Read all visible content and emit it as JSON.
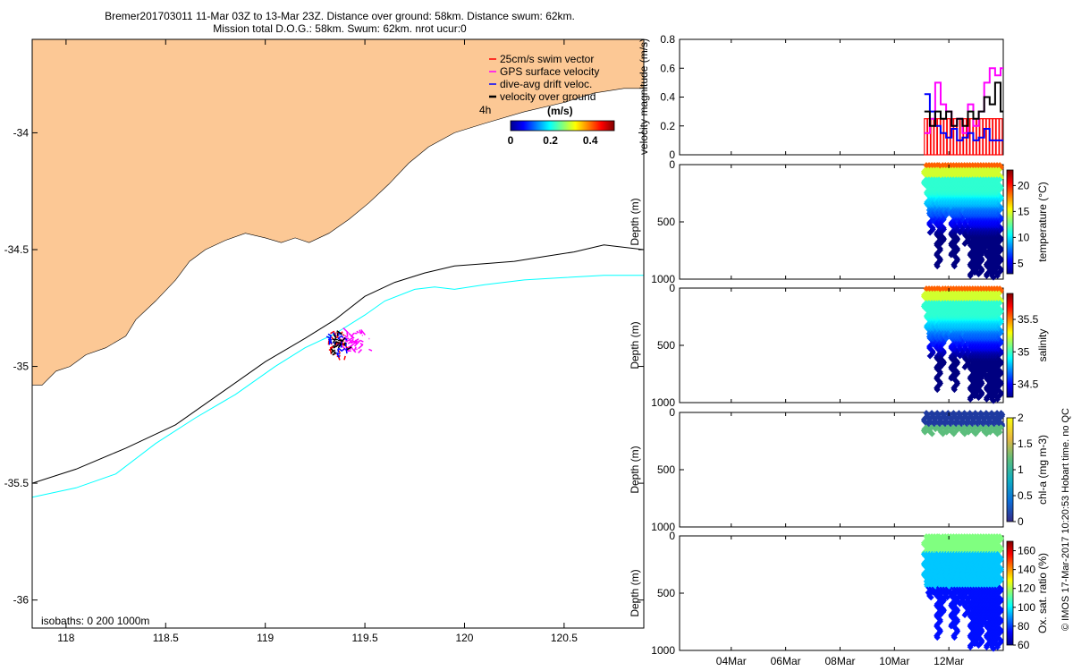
{
  "header": {
    "line1": "Bremer201703011 11-Mar 03Z to 13-Mar 23Z. Distance over ground: 58km. Distance swum: 62km.",
    "line2": "Mission total D.O.G.: 58km. Swum: 62km. nrot ucur:0"
  },
  "credit": "© IMOS 17-Mar-2017 10:20:53 Hobart time. no QC",
  "colors": {
    "land": "#fcc895",
    "isobath200": "#000000",
    "isobath1000": "#00ffff",
    "swim": "#ff0000",
    "gps": "#ff00ff",
    "dive": "#0000ff",
    "ground": "#000000"
  },
  "chart_data": [
    {
      "type": "map",
      "x_ticks": [
        "118",
        "118.5",
        "119",
        "119.5",
        "120",
        "120.5"
      ],
      "y_ticks": [
        "-34",
        "-34.5",
        "-35",
        "-35.5",
        "-36"
      ],
      "xlim": [
        117.83,
        120.9
      ],
      "ylim": [
        -36.12,
        -33.6
      ],
      "legend": {
        "placement": "top-right",
        "items": [
          {
            "label": "25cm/s swim vector",
            "color": "#ff0000"
          },
          {
            "label": "GPS surface velocity",
            "color": "#ff00ff"
          },
          {
            "label": "dive-avg drift veloc.",
            "color": "#0000ff"
          },
          {
            "label": "velocity over ground",
            "color": "#000000"
          }
        ]
      },
      "colorbar": {
        "unit_label": "(m/s)",
        "ticks": [
          "0",
          "0.2",
          "0.4"
        ],
        "range": [
          0,
          0.52
        ],
        "lag_label": "4h"
      },
      "isobath_label": "isobaths: 0   200  1000m",
      "coastline": [
        [
          117.83,
          -35.08
        ],
        [
          117.88,
          -35.08
        ],
        [
          117.95,
          -35.02
        ],
        [
          118.02,
          -35.0
        ],
        [
          118.1,
          -34.95
        ],
        [
          118.2,
          -34.92
        ],
        [
          118.3,
          -34.87
        ],
        [
          118.35,
          -34.8
        ],
        [
          118.45,
          -34.72
        ],
        [
          118.55,
          -34.63
        ],
        [
          118.62,
          -34.55
        ],
        [
          118.7,
          -34.5
        ],
        [
          118.8,
          -34.46
        ],
        [
          118.9,
          -34.43
        ],
        [
          119.0,
          -34.45
        ],
        [
          119.08,
          -34.47
        ],
        [
          119.15,
          -34.45
        ],
        [
          119.22,
          -34.47
        ],
        [
          119.32,
          -34.43
        ],
        [
          119.42,
          -34.37
        ],
        [
          119.52,
          -34.3
        ],
        [
          119.62,
          -34.22
        ],
        [
          119.72,
          -34.13
        ],
        [
          119.82,
          -34.06
        ],
        [
          119.95,
          -34.0
        ],
        [
          120.1,
          -33.96
        ],
        [
          120.3,
          -33.91
        ],
        [
          120.5,
          -33.87
        ],
        [
          120.65,
          -33.83
        ],
        [
          120.8,
          -33.81
        ],
        [
          120.9,
          -33.81
        ]
      ],
      "isobath_200m": [
        [
          117.83,
          -35.5
        ],
        [
          118.05,
          -35.44
        ],
        [
          118.3,
          -35.35
        ],
        [
          118.55,
          -35.25
        ],
        [
          118.8,
          -35.1
        ],
        [
          119.0,
          -34.98
        ],
        [
          119.2,
          -34.88
        ],
        [
          119.35,
          -34.8
        ],
        [
          119.5,
          -34.7
        ],
        [
          119.65,
          -34.64
        ],
        [
          119.8,
          -34.6
        ],
        [
          119.95,
          -34.57
        ],
        [
          120.1,
          -34.56
        ],
        [
          120.25,
          -34.55
        ],
        [
          120.4,
          -34.53
        ],
        [
          120.55,
          -34.51
        ],
        [
          120.7,
          -34.48
        ],
        [
          120.9,
          -34.5
        ]
      ],
      "isobath_1000m": [
        [
          117.83,
          -35.56
        ],
        [
          118.05,
          -35.52
        ],
        [
          118.25,
          -35.46
        ],
        [
          118.45,
          -35.33
        ],
        [
          118.65,
          -35.22
        ],
        [
          118.85,
          -35.12
        ],
        [
          119.05,
          -35.0
        ],
        [
          119.2,
          -34.92
        ],
        [
          119.35,
          -34.86
        ],
        [
          119.5,
          -34.78
        ],
        [
          119.6,
          -34.72
        ],
        [
          119.75,
          -34.67
        ],
        [
          119.85,
          -34.66
        ],
        [
          119.95,
          -34.67
        ],
        [
          120.1,
          -34.65
        ],
        [
          120.3,
          -34.63
        ],
        [
          120.5,
          -34.62
        ],
        [
          120.7,
          -34.61
        ],
        [
          120.9,
          -34.61
        ]
      ],
      "track_center": [
        119.35,
        -34.9
      ]
    },
    {
      "type": "line",
      "ylabel": "velocity magnitude (m/s)",
      "ylim": [
        0,
        0.8
      ],
      "y_ticks": [
        "0",
        "0.2",
        "0.4",
        "0.6",
        "0.8"
      ],
      "series": [
        {
          "color": "#ff0000",
          "x": [
            11.1,
            11.5,
            12.0,
            12.5,
            13.0,
            13.5,
            13.9
          ],
          "values": [
            0.25,
            0.25,
            0.25,
            0.25,
            0.25,
            0.25,
            0.25
          ]
        },
        {
          "color": "#ff00ff",
          "x": [
            11.1,
            11.3,
            11.5,
            11.7,
            11.9,
            12.1,
            12.3,
            12.5,
            12.7,
            12.9,
            13.1,
            13.3,
            13.5,
            13.7,
            13.9
          ],
          "values": [
            0.15,
            0.25,
            0.5,
            0.35,
            0.3,
            0.2,
            0.25,
            0.15,
            0.35,
            0.2,
            0.3,
            0.5,
            0.6,
            0.55,
            0.6
          ]
        },
        {
          "color": "#0000ff",
          "x": [
            11.1,
            11.3,
            11.5,
            11.7,
            11.9,
            12.1,
            12.3,
            12.5,
            12.7,
            12.9,
            13.1,
            13.3,
            13.5,
            13.7,
            13.9
          ],
          "values": [
            0.42,
            0.3,
            0.2,
            0.15,
            0.12,
            0.18,
            0.1,
            0.12,
            0.15,
            0.1,
            0.12,
            0.18,
            0.1,
            0.1,
            0.1
          ]
        },
        {
          "color": "#000000",
          "x": [
            11.1,
            11.3,
            11.5,
            11.7,
            11.9,
            12.1,
            12.3,
            12.5,
            12.7,
            12.9,
            13.1,
            13.3,
            13.5,
            13.7,
            13.9
          ],
          "values": [
            0.3,
            0.2,
            0.3,
            0.25,
            0.3,
            0.2,
            0.25,
            0.2,
            0.3,
            0.25,
            0.3,
            0.4,
            0.35,
            0.5,
            0.3
          ]
        }
      ]
    },
    {
      "type": "scatter",
      "ylabel": "Depth (m)",
      "cbar_label": "temperature (°C)",
      "cbar_ticks": [
        "5",
        "10",
        "15",
        "20"
      ],
      "clim": [
        3,
        23
      ],
      "ylim": [
        1000,
        0
      ],
      "y_ticks": [
        "0",
        "500",
        "1000"
      ],
      "variable": "temperature",
      "dives": [
        [
          11.15,
          200
        ],
        [
          11.25,
          400
        ],
        [
          11.35,
          600
        ],
        [
          11.45,
          500
        ],
        [
          11.55,
          300
        ],
        [
          11.62,
          900
        ],
        [
          11.75,
          700
        ],
        [
          11.85,
          400
        ],
        [
          11.95,
          450
        ],
        [
          12.05,
          380
        ],
        [
          12.15,
          800
        ],
        [
          12.25,
          900
        ],
        [
          12.35,
          500
        ],
        [
          12.45,
          600
        ],
        [
          12.55,
          400
        ],
        [
          12.65,
          700
        ],
        [
          12.75,
          500
        ],
        [
          12.85,
          980
        ],
        [
          12.95,
          950
        ],
        [
          13.05,
          900
        ],
        [
          13.15,
          960
        ],
        [
          13.25,
          800
        ],
        [
          13.35,
          700
        ],
        [
          13.45,
          980
        ],
        [
          13.55,
          950
        ],
        [
          13.65,
          990
        ],
        [
          13.75,
          900
        ],
        [
          13.85,
          980
        ]
      ]
    },
    {
      "type": "scatter",
      "ylabel": "Depth (m)",
      "cbar_label": "salinity",
      "cbar_ticks": [
        "34.5",
        "35",
        "35.5"
      ],
      "clim": [
        34.3,
        35.9
      ],
      "ylim": [
        1000,
        0
      ],
      "y_ticks": [
        "0",
        "500",
        "1000"
      ],
      "variable": "salinity",
      "dives": [
        [
          11.15,
          200
        ],
        [
          11.25,
          400
        ],
        [
          11.35,
          600
        ],
        [
          11.45,
          500
        ],
        [
          11.55,
          300
        ],
        [
          11.62,
          900
        ],
        [
          11.75,
          700
        ],
        [
          11.85,
          400
        ],
        [
          11.95,
          450
        ],
        [
          12.05,
          380
        ],
        [
          12.15,
          800
        ],
        [
          12.25,
          900
        ],
        [
          12.35,
          500
        ],
        [
          12.45,
          600
        ],
        [
          12.55,
          400
        ],
        [
          12.65,
          700
        ],
        [
          12.75,
          500
        ],
        [
          12.85,
          980
        ],
        [
          12.95,
          950
        ],
        [
          13.05,
          900
        ],
        [
          13.15,
          960
        ],
        [
          13.25,
          800
        ],
        [
          13.35,
          700
        ],
        [
          13.45,
          980
        ],
        [
          13.55,
          950
        ],
        [
          13.65,
          990
        ],
        [
          13.75,
          900
        ],
        [
          13.85,
          980
        ]
      ]
    },
    {
      "type": "scatter",
      "ylabel": "Depth (m)",
      "cbar_label": "chl-a (mg m-3)",
      "cbar_ticks": [
        "0",
        "0.5",
        "1",
        "1.5",
        "2"
      ],
      "clim": [
        0,
        2
      ],
      "ylim": [
        1000,
        0
      ],
      "y_ticks": [
        "0",
        "500",
        "1000"
      ],
      "variable": "chl",
      "dives": [
        [
          11.15,
          180
        ],
        [
          11.35,
          200
        ],
        [
          11.55,
          150
        ],
        [
          11.75,
          200
        ],
        [
          11.95,
          180
        ],
        [
          12.15,
          200
        ],
        [
          12.35,
          160
        ],
        [
          12.55,
          200
        ],
        [
          12.75,
          180
        ],
        [
          12.95,
          200
        ],
        [
          13.15,
          160
        ],
        [
          13.35,
          200
        ],
        [
          13.55,
          180
        ],
        [
          13.75,
          200
        ],
        [
          13.9,
          180
        ]
      ]
    },
    {
      "type": "scatter",
      "ylabel": "Depth (m)",
      "cbar_label": "Ox. sat. ratio (%)",
      "cbar_ticks": [
        "60",
        "80",
        "100",
        "120",
        "140",
        "160"
      ],
      "clim": [
        60,
        170
      ],
      "ylim": [
        1000,
        0
      ],
      "y_ticks": [
        "0",
        "500",
        "1000"
      ],
      "variable": "oxygen",
      "dives": [
        [
          11.15,
          400
        ],
        [
          11.25,
          500
        ],
        [
          11.35,
          550
        ],
        [
          11.45,
          500
        ],
        [
          11.55,
          450
        ],
        [
          11.62,
          900
        ],
        [
          11.75,
          700
        ],
        [
          11.85,
          500
        ],
        [
          11.95,
          550
        ],
        [
          12.05,
          450
        ],
        [
          12.15,
          800
        ],
        [
          12.25,
          900
        ],
        [
          12.35,
          500
        ],
        [
          12.45,
          600
        ],
        [
          12.55,
          550
        ],
        [
          12.65,
          700
        ],
        [
          12.75,
          500
        ],
        [
          12.85,
          980
        ],
        [
          12.95,
          950
        ],
        [
          13.05,
          900
        ],
        [
          13.15,
          960
        ],
        [
          13.25,
          800
        ],
        [
          13.35,
          700
        ],
        [
          13.45,
          980
        ],
        [
          13.55,
          950
        ],
        [
          13.65,
          990
        ],
        [
          13.75,
          900
        ],
        [
          13.85,
          980
        ]
      ]
    },
    {
      "type": "axis",
      "x_ticks": [
        "04Mar",
        "06Mar",
        "08Mar",
        "10Mar",
        "12Mar"
      ],
      "x_tick_values": [
        4,
        6,
        8,
        10,
        12
      ],
      "xlim": [
        2.1,
        14.0
      ]
    }
  ]
}
